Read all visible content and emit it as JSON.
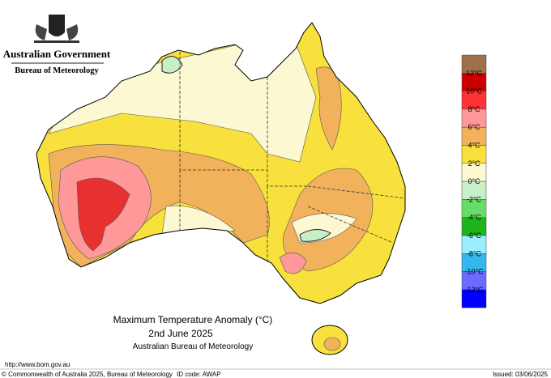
{
  "header": {
    "government": "Australian Government",
    "agency": "Bureau of Meteorology"
  },
  "map": {
    "title": "Maximum Temperature Anomaly (°C)",
    "date": "2nd June 2025",
    "source": "Australian Bureau of Meteorology"
  },
  "legend": {
    "colors": [
      "#a0704a",
      "#cc0000",
      "#ff3333",
      "#ff9999",
      "#f2b25c",
      "#f8e13c",
      "#fbf8d2",
      "#c8f0c8",
      "#66dd66",
      "#1eb41e",
      "#99eeff",
      "#33b8ee",
      "#6b6bff",
      "#0000ff"
    ],
    "labels": [
      "12°C",
      "10°C",
      "8°C",
      "6°C",
      "4°C",
      "2°C",
      "0°C",
      "-2°C",
      "-4°C",
      "-6°C",
      "-8°C",
      "-10°C",
      "-12°C"
    ]
  },
  "footer": {
    "url": "http://www.bom.gov.au",
    "copyright": "© Commonwealth of Australia 2025, Bureau of Meteorology",
    "id_code": "ID code: AWAP",
    "issued": "Issued: 03/06/2025"
  }
}
